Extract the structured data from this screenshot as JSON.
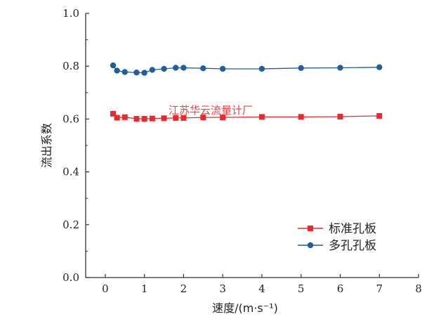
{
  "chart_data": {
    "type": "line",
    "xlabel": "速度/(m·s⁻¹)",
    "ylabel": "流出系数",
    "xlim": [
      -0.5,
      8
    ],
    "ylim": [
      0,
      1.0
    ],
    "xticks": [
      "0",
      "1",
      "2",
      "3",
      "4",
      "5",
      "6",
      "7",
      "8"
    ],
    "xtick_values": [
      0,
      1,
      2,
      3,
      4,
      5,
      6,
      7,
      8
    ],
    "yticks": [
      "0.0",
      "0.2",
      "0.4",
      "0.6",
      "0.8",
      "1.0"
    ],
    "ytick_values": [
      0,
      0.2,
      0.4,
      0.6,
      0.8,
      1.0
    ],
    "legend_position": "bottom-right",
    "series": [
      {
        "name": "标准孔板",
        "color": "#e8292e",
        "marker": "square",
        "x": [
          0.2,
          0.3,
          0.5,
          0.8,
          1.0,
          1.2,
          1.5,
          1.8,
          2.0,
          2.5,
          3.0,
          4.0,
          5.0,
          6.0,
          7.0
        ],
        "y": [
          0.62,
          0.605,
          0.607,
          0.601,
          0.601,
          0.602,
          0.603,
          0.604,
          0.604,
          0.606,
          0.606,
          0.608,
          0.608,
          0.609,
          0.612
        ]
      },
      {
        "name": "多孔孔板",
        "color": "#1f5f9e",
        "marker": "circle",
        "x": [
          0.2,
          0.3,
          0.5,
          0.8,
          1.0,
          1.2,
          1.5,
          1.8,
          2.0,
          2.5,
          3.0,
          4.0,
          5.0,
          6.0,
          7.0
        ],
        "y": [
          0.803,
          0.783,
          0.778,
          0.776,
          0.775,
          0.786,
          0.79,
          0.794,
          0.794,
          0.792,
          0.79,
          0.79,
          0.793,
          0.794,
          0.796
        ]
      }
    ]
  },
  "watermark": "江苏华云流量计厂"
}
